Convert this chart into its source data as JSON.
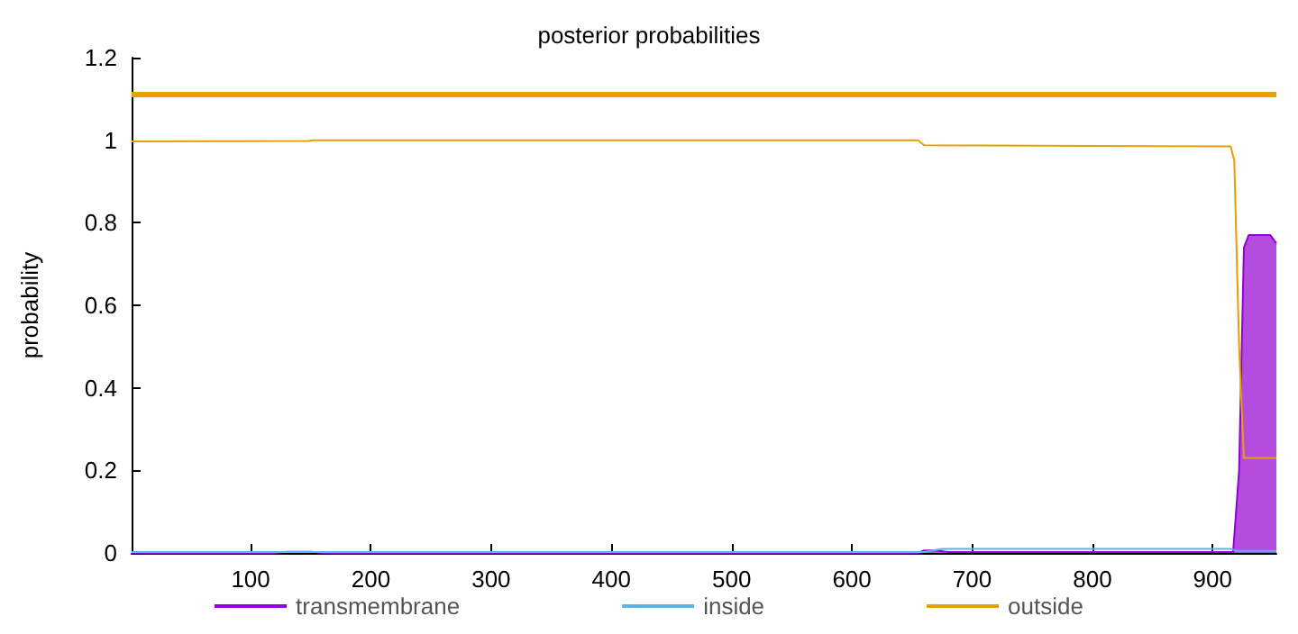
{
  "chart_data": {
    "type": "line",
    "title": "posterior probabilities",
    "ylabel": "probability",
    "xlim": [
      1,
      953
    ],
    "xticks": [
      100,
      200,
      300,
      400,
      500,
      600,
      700,
      800,
      900
    ],
    "ylim": [
      0,
      1.2
    ],
    "yticks": [
      0,
      0.2,
      0.4,
      0.6,
      0.8,
      1,
      1.2
    ],
    "grid": false,
    "legend": "bottom",
    "marker": "none",
    "line_style": "solid",
    "ref_lines": [
      {
        "axis": "y",
        "value": 1.11,
        "color": "#e69f00"
      }
    ],
    "series": [
      {
        "name": "transmembrane",
        "type": "area",
        "color": "#9400d3",
        "x": [
          1,
          120,
          130,
          150,
          160,
          655,
          660,
          670,
          680,
          917,
          919,
          922,
          926,
          930,
          948,
          953
        ],
        "values": [
          0,
          0,
          0.003,
          0.003,
          0,
          0,
          0.006,
          0.006,
          0.002,
          0.002,
          0.08,
          0.2,
          0.74,
          0.77,
          0.77,
          0.75
        ]
      },
      {
        "name": "inside",
        "color": "#56b4e9",
        "x": [
          1,
          660,
          675,
          915,
          920,
          953
        ],
        "values": [
          0.002,
          0.002,
          0.01,
          0.01,
          0.005,
          0.005
        ]
      },
      {
        "name": "outside",
        "color": "#e69f00",
        "x": [
          1,
          148,
          152,
          655,
          660,
          915,
          918,
          922,
          926,
          953
        ],
        "values": [
          0.997,
          0.998,
          1,
          1,
          0.988,
          0.985,
          0.95,
          0.5,
          0.23,
          0.23
        ]
      }
    ]
  }
}
